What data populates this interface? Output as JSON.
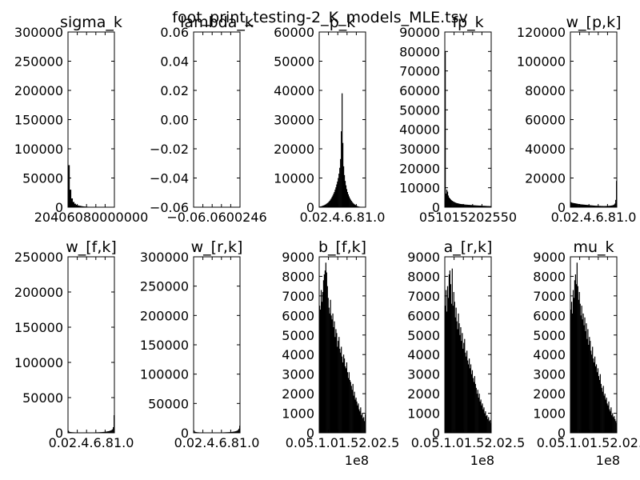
{
  "figure_title": "foot_print_testing-2_K_models_MLE.tsv",
  "chart_data": [
    {
      "type": "bar",
      "title": "sigma_k",
      "ylim": [
        0,
        300000
      ],
      "yticks": [
        "0",
        "50000",
        "100000",
        "150000",
        "200000",
        "250000",
        "300000"
      ],
      "xtick_labels": [
        "2000000",
        "4000000",
        "6000000",
        "8000000",
        "10000000"
      ],
      "xtick_overlap_text": "20406080000000",
      "bars": [
        72000,
        30000,
        15000,
        9000,
        6000,
        4000,
        3000,
        2500,
        2000,
        1500,
        1200,
        1000,
        800,
        700,
        600,
        500,
        400,
        300,
        300,
        250,
        200,
        200,
        150,
        150,
        100,
        100,
        100,
        80,
        80,
        50
      ],
      "bar_range": [
        0,
        0.1
      ],
      "shape": "spike"
    },
    {
      "type": "bar",
      "title": "lambda_k",
      "ylim": [
        -0.06,
        0.06
      ],
      "yticks": [
        "−0.06",
        "−0.04",
        "−0.02",
        "0.00",
        "0.02",
        "0.04",
        "0.06"
      ],
      "xtick_overlap_text": "−0.06.0600246",
      "bars": [],
      "shape": "empty"
    },
    {
      "type": "bar",
      "title": "p_k",
      "ylim": [
        0,
        60000
      ],
      "yticks": [
        "0",
        "10000",
        "20000",
        "30000",
        "40000",
        "50000",
        "60000"
      ],
      "xtick_overlap_text": "0.02.4.6.81.0",
      "bars": [
        200,
        250,
        300,
        400,
        500,
        600,
        700,
        850,
        1000,
        1200,
        1400,
        1600,
        1900,
        2200,
        2600,
        3000,
        3500,
        4000,
        4600,
        5200,
        6000,
        6800,
        7800,
        8800,
        10000,
        11500,
        13500,
        16500,
        26000,
        39000,
        22000,
        14000,
        11000,
        9000,
        7500,
        6200,
        5200,
        4400,
        3700,
        3100,
        2600,
        2200,
        1800,
        1500,
        1200,
        1000,
        800,
        600,
        450,
        350,
        250,
        200,
        150,
        100,
        80,
        60,
        40,
        30,
        20,
        10
      ],
      "bar_range": [
        0,
        1
      ],
      "shape": "peak"
    },
    {
      "type": "bar",
      "title": "fp_k",
      "ylim": [
        0,
        90000
      ],
      "yticks": [
        "0",
        "10000",
        "20000",
        "30000",
        "40000",
        "50000",
        "60000",
        "70000",
        "80000",
        "90000"
      ],
      "xtick_overlap_text": "051015202550",
      "bars": [
        80000,
        7000,
        9000,
        8000,
        6000,
        5000,
        4500,
        4000,
        3600,
        3300,
        3000,
        2800,
        2600,
        2400,
        2200,
        2100,
        2000,
        1900,
        1800,
        1700,
        1650,
        1600,
        1550,
        1500,
        1450,
        1400,
        1350,
        1300,
        1300,
        1250,
        1200,
        1200,
        1150,
        1100,
        1100,
        1050,
        1000,
        1000,
        950,
        950,
        900,
        900,
        850,
        850,
        800,
        800,
        800,
        750,
        750,
        700,
        700,
        700,
        650,
        650,
        600,
        600,
        600,
        550,
        550,
        500
      ],
      "bar_range": [
        0,
        30
      ],
      "shape": "decay"
    },
    {
      "type": "bar",
      "title": "w_[p,k]",
      "ylim": [
        0,
        120000
      ],
      "yticks": [
        "0",
        "20000",
        "40000",
        "60000",
        "80000",
        "100000",
        "120000"
      ],
      "xtick_overlap_text": "0.02.4.6.81.0",
      "bars": [
        3500,
        3200,
        3000,
        2900,
        2800,
        2700,
        2600,
        2500,
        2400,
        2300,
        2200,
        2100,
        2000,
        1950,
        1900,
        1850,
        1800,
        1750,
        1700,
        1650,
        1600,
        1550,
        1500,
        1450,
        1400,
        1350,
        1300,
        1250,
        1200,
        1150,
        1100,
        1050,
        1000,
        1000,
        950,
        950,
        900,
        900,
        900,
        850,
        850,
        850,
        800,
        800,
        800,
        800,
        850,
        850,
        900,
        900,
        950,
        1000,
        1100,
        1200,
        1300,
        1500,
        1800,
        2500,
        5000,
        18000
      ],
      "bar_range": [
        0,
        1
      ],
      "shape": "u"
    },
    {
      "type": "bar",
      "title": "w_[f,k]",
      "ylim": [
        0,
        250000
      ],
      "yticks": [
        "0",
        "50000",
        "100000",
        "150000",
        "200000",
        "250000"
      ],
      "xtick_overlap_text": "0.02.4.6.81.0",
      "bars": [
        3000,
        1500,
        1200,
        1000,
        900,
        800,
        750,
        700,
        650,
        600,
        600,
        550,
        550,
        500,
        500,
        500,
        480,
        460,
        440,
        420,
        400,
        400,
        400,
        400,
        400,
        400,
        420,
        440,
        460,
        480,
        500,
        520,
        540,
        560,
        580,
        600,
        650,
        700,
        750,
        800,
        850,
        900,
        950,
        1000,
        1100,
        1200,
        1300,
        1400,
        1500,
        1700,
        1900,
        2100,
        2300,
        2600,
        3000,
        3500,
        4000,
        5000,
        8000,
        25000
      ],
      "bar_range": [
        0,
        1
      ],
      "shape": "u"
    },
    {
      "type": "bar",
      "title": "w_[r,k]",
      "ylim": [
        0,
        300000
      ],
      "yticks": [
        "0",
        "50000",
        "100000",
        "150000",
        "200000",
        "250000",
        "300000"
      ],
      "xtick_overlap_text": "0.02.4.6.81.0",
      "bars": [
        4000,
        2000,
        1500,
        1200,
        1000,
        900,
        800,
        700,
        650,
        600,
        550,
        500,
        500,
        480,
        460,
        440,
        420,
        400,
        400,
        400,
        400,
        400,
        400,
        400,
        400,
        400,
        420,
        440,
        460,
        480,
        500,
        520,
        540,
        560,
        580,
        600,
        650,
        700,
        750,
        800,
        850,
        900,
        950,
        1000,
        1050,
        1100,
        1200,
        1300,
        1400,
        1500,
        1700,
        1900,
        2100,
        2400,
        2800,
        3200,
        3800,
        4800,
        7000,
        12000
      ],
      "bar_range": [
        0,
        1
      ],
      "shape": "u"
    },
    {
      "type": "bar",
      "title": "b_[f,k]",
      "ylim": [
        0,
        9000
      ],
      "yticks": [
        "0",
        "1000",
        "2000",
        "3000",
        "4000",
        "5000",
        "6000",
        "7000",
        "8000",
        "9000"
      ],
      "xtick_overlap_text": "0.05.1.01.52.02.5",
      "x_offset_label": "1e8",
      "bars": [
        6500,
        6300,
        7300,
        6700,
        7200,
        7800,
        8100,
        8300,
        8700,
        8200,
        7500,
        6900,
        6400,
        6100,
        6800,
        6000,
        5800,
        6100,
        5400,
        5700,
        4900,
        5300,
        5100,
        4400,
        4700,
        4900,
        4300,
        4100,
        4400,
        3900,
        3600,
        4000,
        3800,
        3400,
        3300,
        3600,
        3100,
        2800,
        3100,
        2700,
        2600,
        2400,
        2200,
        2500,
        1900,
        2100,
        1700,
        1800,
        1600,
        1400,
        1500,
        1200,
        1100,
        1300,
        900,
        1000,
        750,
        800,
        600,
        950
      ],
      "bar_range": [
        0,
        2.5
      ],
      "shape": "decay"
    },
    {
      "type": "bar",
      "title": "a_[r,k]",
      "ylim": [
        0,
        9000
      ],
      "yticks": [
        "0",
        "1000",
        "2000",
        "3000",
        "4000",
        "5000",
        "6000",
        "7000",
        "8000",
        "9000"
      ],
      "xtick_overlap_text": "0.05.1.01.52.02.5",
      "x_offset_label": "1e8",
      "bars": [
        6500,
        7300,
        6200,
        7500,
        6900,
        8100,
        8300,
        7600,
        6600,
        8400,
        6500,
        7200,
        6700,
        5900,
        6400,
        5700,
        5300,
        6100,
        5600,
        5000,
        5400,
        4700,
        5100,
        4300,
        4600,
        4800,
        4100,
        3900,
        4200,
        3700,
        3500,
        3800,
        3300,
        3500,
        3000,
        3200,
        2800,
        2600,
        2900,
        2500,
        2300,
        2000,
        2200,
        1800,
        2000,
        1600,
        1700,
        1400,
        1500,
        1200,
        1300,
        1000,
        1100,
        850,
        900,
        700,
        800,
        600,
        650,
        500
      ],
      "bar_range": [
        0,
        2.5
      ],
      "shape": "decay"
    },
    {
      "type": "bar",
      "title": "mu_k",
      "ylim": [
        0,
        9000
      ],
      "yticks": [
        "0",
        "1000",
        "2000",
        "3000",
        "4000",
        "5000",
        "6000",
        "7000",
        "8000",
        "9000"
      ],
      "xtick_overlap_text": "0.05.1.01.52.02.5",
      "x_offset_label": "1e8",
      "bars": [
        6300,
        6700,
        6100,
        7300,
        6900,
        7800,
        8100,
        7600,
        8700,
        7500,
        6800,
        7200,
        6600,
        6000,
        6500,
        5800,
        6100,
        5500,
        5900,
        5200,
        5600,
        4800,
        5300,
        4500,
        4900,
        4700,
        4200,
        4000,
        4400,
        3800,
        3600,
        3900,
        3400,
        3500,
        3100,
        3300,
        2900,
        2700,
        3000,
        2500,
        2300,
        2100,
        2400,
        1900,
        2000,
        1700,
        1800,
        1500,
        1400,
        1600,
        1200,
        1100,
        1300,
        900,
        1000,
        800,
        850,
        700,
        600,
        500
      ],
      "bar_range": [
        0,
        2.5
      ],
      "shape": "decay"
    }
  ]
}
